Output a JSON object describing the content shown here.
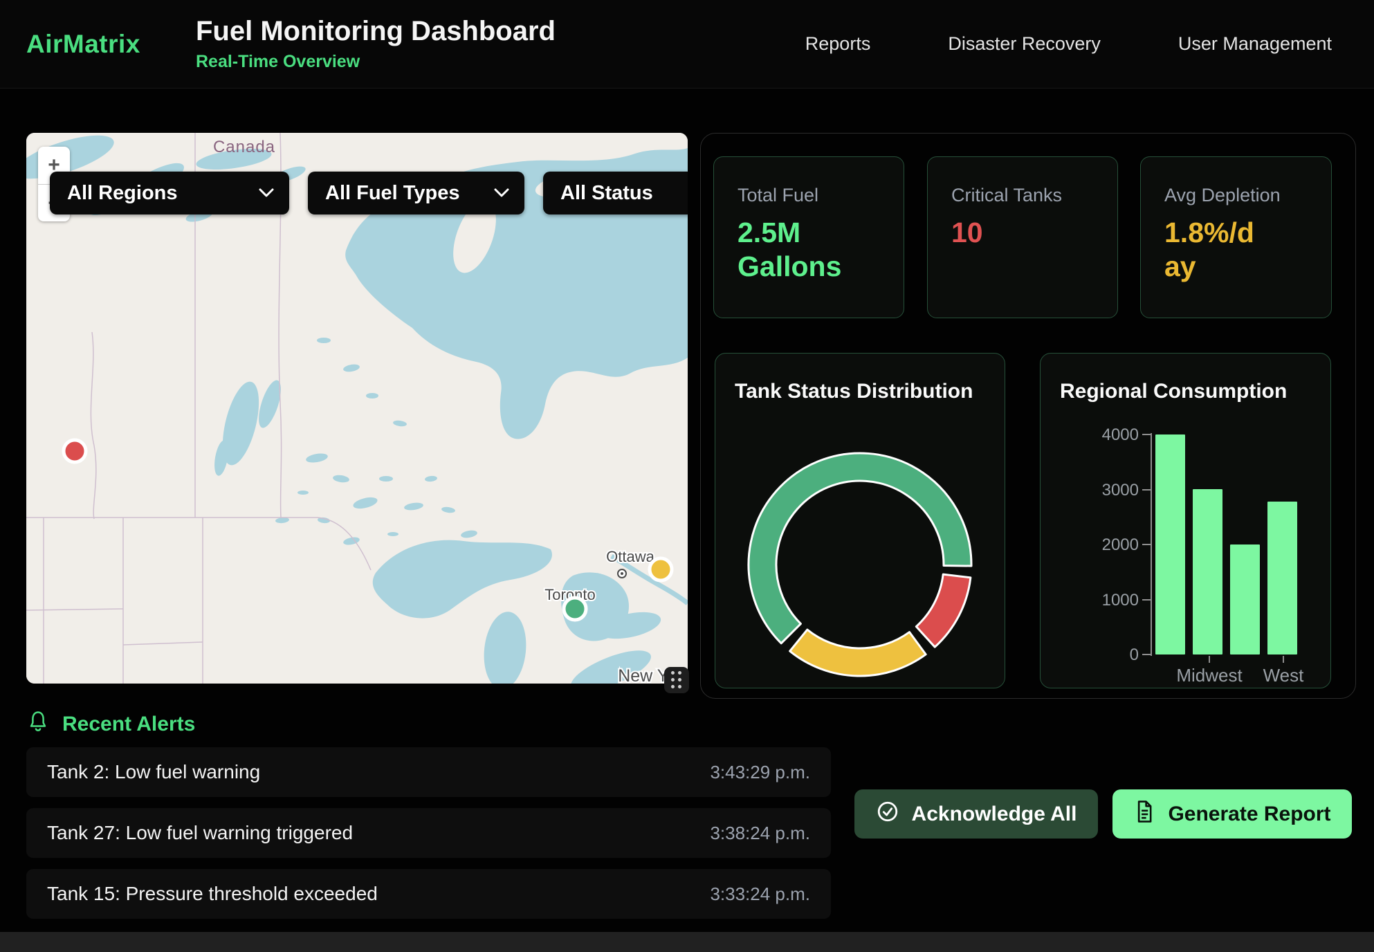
{
  "theme": {
    "background": "#000000",
    "accent_green": "#4ade80",
    "value_green": "#5ef08d",
    "critical_red": "#e05252",
    "warning_amber": "#eab832",
    "bar_green": "#7df7a1",
    "card_border_green": "#265039",
    "panel_border": "#2c2c2c"
  },
  "header": {
    "brand": "AirMatrix",
    "title": "Fuel Monitoring Dashboard",
    "subtitle": "Real-Time Overview",
    "nav": [
      {
        "label": "Reports"
      },
      {
        "label": "Disaster Recovery"
      },
      {
        "label": "User Management"
      }
    ]
  },
  "map": {
    "zoom_in_label": "+",
    "zoom_out_label": "−",
    "filters": [
      {
        "name": "regions",
        "value": "All Regions"
      },
      {
        "name": "fuel-types",
        "value": "All Fuel Types"
      },
      {
        "name": "status",
        "value": "All Status"
      }
    ],
    "country_label": "Canada",
    "city_labels": [
      "Ottawa",
      "Toronto",
      "New York"
    ],
    "markers": [
      {
        "status": "critical",
        "color": "#db4d4d"
      },
      {
        "status": "warning",
        "color": "#eec13f"
      },
      {
        "status": "normal",
        "color": "#4caf7e"
      }
    ]
  },
  "stats": {
    "cards": [
      {
        "label": "Total Fuel",
        "value": "2.5M Gallons",
        "color": "#5ef08d"
      },
      {
        "label": "Critical Tanks",
        "value": "10",
        "color": "#e05252"
      },
      {
        "label": "Avg Depletion",
        "value": "1.8%/day",
        "color": "#eab832"
      }
    ]
  },
  "chart_data": [
    {
      "type": "donut",
      "title": "Tank Status Distribution",
      "segments": [
        {
          "label": "green",
          "percent": 66,
          "color": "#4caf7e"
        },
        {
          "label": "red",
          "percent": 12,
          "color": "#db4d4d"
        },
        {
          "label": "yellow",
          "percent": 22,
          "color": "#eec13f"
        }
      ],
      "start_angle_deg": 225,
      "pad_angle_deg": 6,
      "legend": "none"
    },
    {
      "type": "bar",
      "title": "Regional Consumption",
      "categories": [
        "",
        "Midwest",
        "",
        "West"
      ],
      "visible_x_labels": [
        "Midwest",
        "West"
      ],
      "values": [
        4000,
        3000,
        2000,
        2780
      ],
      "yticks": [
        0,
        1000,
        2000,
        3000,
        4000
      ],
      "ylim": [
        0,
        4000
      ],
      "xlabel": "",
      "ylabel": "",
      "grid": false,
      "bar_color": "#7df7a1"
    }
  ],
  "alerts": {
    "title": "Recent Alerts",
    "items": [
      {
        "message": "Tank 2: Low fuel warning",
        "time": "3:43:29 p.m."
      },
      {
        "message": "Tank 27: Low fuel warning triggered",
        "time": "3:38:24 p.m."
      },
      {
        "message": "Tank 15: Pressure threshold exceeded",
        "time": "3:33:24 p.m."
      }
    ]
  },
  "actions": {
    "acknowledge_all": "Acknowledge All",
    "generate_report": "Generate Report"
  }
}
